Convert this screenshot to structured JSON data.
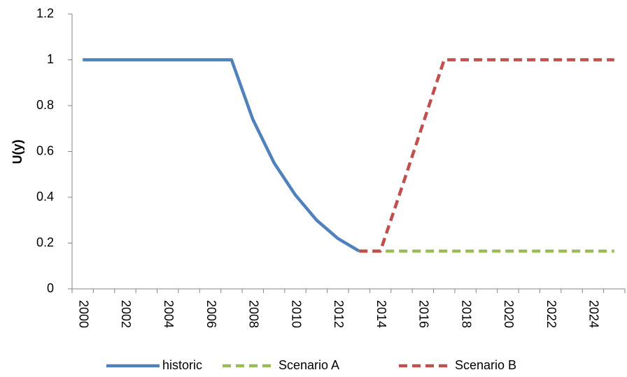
{
  "chart_data": {
    "type": "line",
    "y_label": "U(y)",
    "categories": [
      "2000",
      null,
      "2002",
      null,
      "2004",
      null,
      "2006",
      null,
      "2008",
      null,
      "2010",
      null,
      "2012",
      null,
      "2014",
      null,
      "2016",
      null,
      "2018",
      null,
      "2020",
      null,
      "2022",
      null,
      "2024",
      null
    ],
    "series": [
      {
        "name": "historic",
        "color": "#4f81bd",
        "dash": false,
        "values": [
          1,
          1,
          1,
          1,
          1,
          1,
          1,
          1,
          0.74,
          0.55,
          0.41,
          0.3,
          0.22,
          0.165,
          null,
          null,
          null,
          null,
          null,
          null,
          null,
          null,
          null,
          null,
          null,
          null
        ]
      },
      {
        "name": "Scenario A",
        "color": "#9bbb59",
        "dash": true,
        "values": [
          null,
          null,
          null,
          null,
          null,
          null,
          null,
          null,
          null,
          null,
          null,
          null,
          null,
          0.165,
          0.165,
          0.165,
          0.165,
          0.165,
          0.165,
          0.165,
          0.165,
          0.165,
          0.165,
          0.165,
          0.165,
          0.165
        ]
      },
      {
        "name": "Scenario B",
        "color": "#c0504d",
        "dash": true,
        "values": [
          null,
          null,
          null,
          null,
          null,
          null,
          null,
          null,
          null,
          null,
          null,
          null,
          null,
          0.165,
          0.165,
          0.44,
          0.72,
          1,
          1,
          1,
          1,
          1,
          1,
          1,
          1,
          1
        ]
      }
    ],
    "ylim": [
      0,
      1.2
    ],
    "yticks": [
      0,
      0.2,
      0.4,
      0.6,
      0.8,
      1,
      1.2
    ],
    "grid": false,
    "legend": "bottom"
  }
}
